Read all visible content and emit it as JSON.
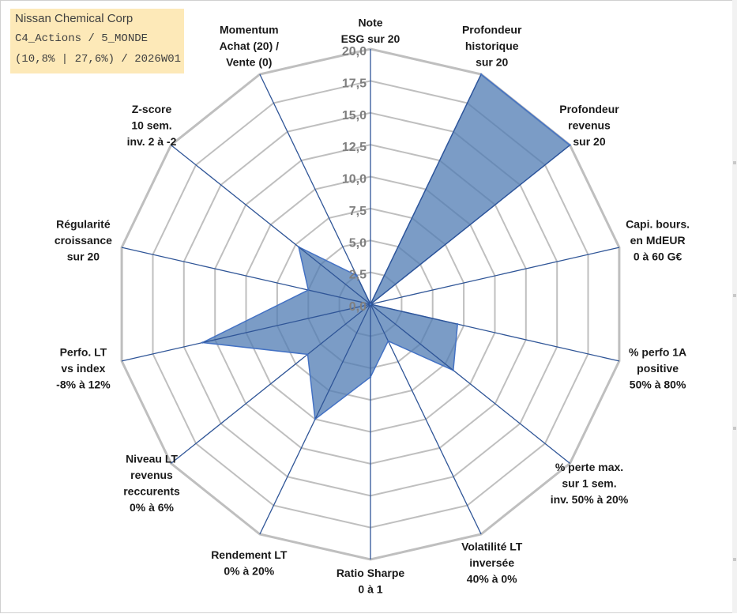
{
  "info": {
    "company": "Nissan Chemical Corp",
    "category": "C4_Actions / 5_MONDE",
    "stats": "(10,8% | 27,6%) / 2026W01"
  },
  "chart_data": {
    "type": "radar",
    "title": "",
    "range": [
      0,
      20
    ],
    "ticks": [
      "0,0",
      "2,5",
      "5,0",
      "7,5",
      "10,0",
      "12,5",
      "15,0",
      "17,5",
      "20,0"
    ],
    "axes": [
      {
        "label": [
          "Note",
          "ESG sur 20"
        ],
        "value": 0
      },
      {
        "label": [
          "Profondeur",
          "historique",
          "sur 20"
        ],
        "value": 20
      },
      {
        "label": [
          "Profondeur",
          "revenus",
          "sur 20"
        ],
        "value": 20
      },
      {
        "label": [
          "Capi. bours.",
          "en MdEUR",
          "0 à 60 G€"
        ],
        "value": 0
      },
      {
        "label": [
          "% perfo 1A",
          "positive",
          "50% à 80%"
        ],
        "value": 7
      },
      {
        "label": [
          "% perte max.",
          "sur 1 sem.",
          "inv. 50% à 20%"
        ],
        "value": 8.3
      },
      {
        "label": [
          "Volatilité LT",
          "inversée",
          "40% à 0%"
        ],
        "value": 3.2
      },
      {
        "label": [
          "Ratio Sharpe",
          "0 à 1"
        ],
        "value": 5.7
      },
      {
        "label": [
          "Rendement LT",
          "0% à 20%"
        ],
        "value": 10
      },
      {
        "label": [
          "Niveau LT",
          "revenus",
          "reccurents",
          "0% à 6%"
        ],
        "value": 6.3
      },
      {
        "label": [
          "Perfo. LT",
          "vs index",
          "-8% à 12%"
        ],
        "value": 13.5
      },
      {
        "label": [
          "Régularité",
          "croissance",
          "sur 20"
        ],
        "value": 5
      },
      {
        "label": [
          "Z-score",
          "10 sem.",
          "inv. 2 à -2"
        ],
        "value": 7.2
      },
      {
        "label": [
          "Momentum",
          "Achat (20) /",
          "Vente (0)"
        ],
        "value": 2.5
      }
    ],
    "colors": {
      "fill": "#4f7bb3",
      "stroke": "#4472c4",
      "grid": "#bfbfbf",
      "spoke": "#2f5597"
    }
  }
}
